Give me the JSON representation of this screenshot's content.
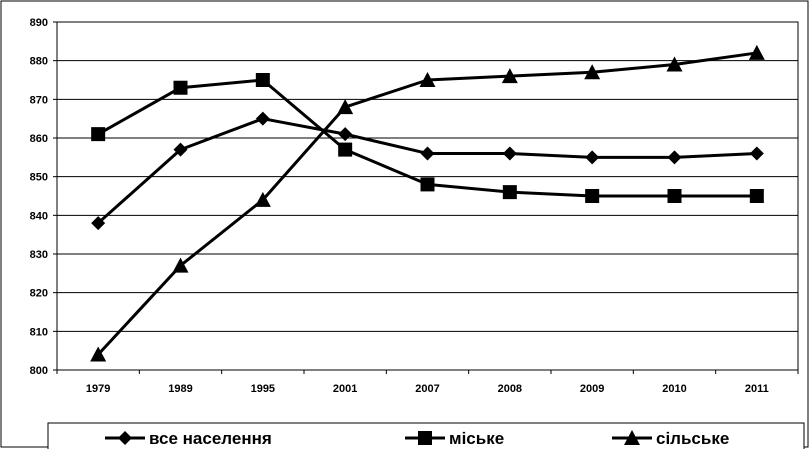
{
  "chart_data": {
    "type": "line",
    "categories": [
      "1979",
      "1989",
      "1995",
      "2001",
      "2007",
      "2008",
      "2009",
      "2010",
      "2011"
    ],
    "series": [
      {
        "name": "все населення",
        "marker": "diamond",
        "values": [
          838,
          857,
          865,
          861,
          856,
          856,
          855,
          855,
          856
        ]
      },
      {
        "name": "міське",
        "marker": "square",
        "values": [
          861,
          873,
          875,
          857,
          848,
          846,
          845,
          845,
          845
        ]
      },
      {
        "name": "сільське",
        "marker": "triangle",
        "values": [
          804,
          827,
          844,
          868,
          875,
          876,
          877,
          879,
          882
        ]
      }
    ],
    "yticks": [
      "800",
      "810",
      "820",
      "830",
      "840",
      "850",
      "860",
      "870",
      "880",
      "890"
    ],
    "ylim": [
      800,
      890
    ],
    "grid": "horizontal",
    "legend_position": "bottom",
    "line_color": "#000000"
  }
}
